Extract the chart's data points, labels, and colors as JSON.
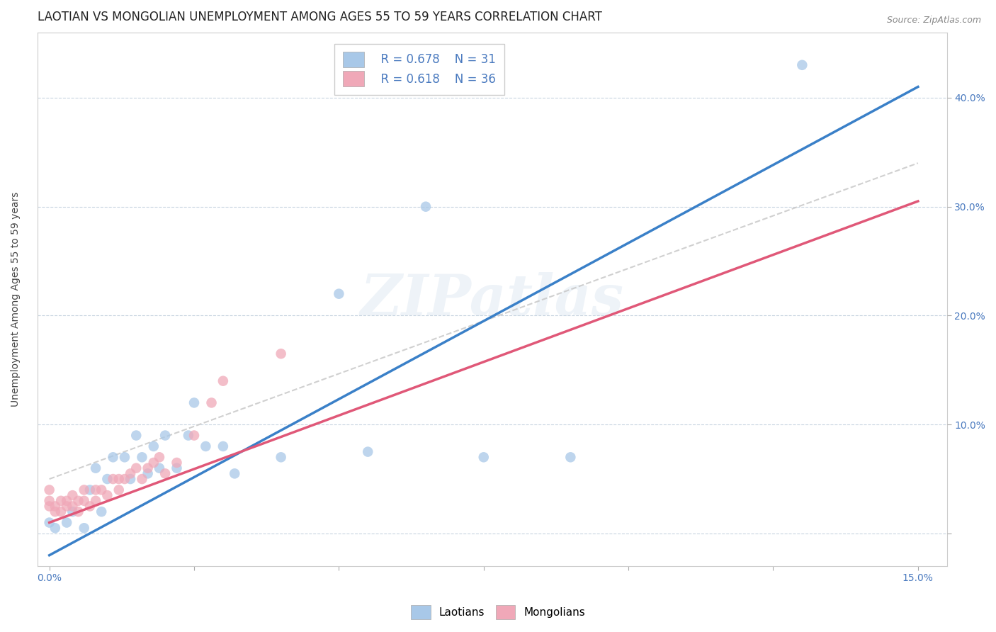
{
  "title": "LAOTIAN VS MONGOLIAN UNEMPLOYMENT AMONG AGES 55 TO 59 YEARS CORRELATION CHART",
  "source": "Source: ZipAtlas.com",
  "ylabel": "Unemployment Among Ages 55 to 59 years",
  "xlim": [
    -0.002,
    0.155
  ],
  "ylim": [
    -0.03,
    0.46
  ],
  "xticks": [
    0.0,
    0.025,
    0.05,
    0.075,
    0.1,
    0.125,
    0.15
  ],
  "xtick_labels": [
    "0.0%",
    "",
    "",
    "",
    "",
    "",
    "15.0%"
  ],
  "yticks": [
    0.0,
    0.1,
    0.2,
    0.3,
    0.4
  ],
  "ytick_labels": [
    "",
    "10.0%",
    "20.0%",
    "30.0%",
    "40.0%"
  ],
  "legend_R1": "R = 0.678",
  "legend_N1": "N = 31",
  "legend_R2": "R = 0.618",
  "legend_N2": "N = 36",
  "laotian_color": "#a8c8e8",
  "mongolian_color": "#f0a8b8",
  "laotian_line_color": "#3a80c8",
  "mongolian_line_color": "#e05878",
  "ref_line_color": "#c8c8c8",
  "watermark": "ZIPatlas",
  "background_color": "#ffffff",
  "grid_color": "#c8d4e0",
  "title_fontsize": 12,
  "axis_label_fontsize": 10,
  "tick_fontsize": 10,
  "legend_fontsize": 12,
  "marker_size": 110,
  "laotian_x": [
    0.0,
    0.001,
    0.003,
    0.004,
    0.006,
    0.007,
    0.008,
    0.009,
    0.01,
    0.011,
    0.013,
    0.014,
    0.015,
    0.016,
    0.017,
    0.018,
    0.019,
    0.02,
    0.022,
    0.024,
    0.025,
    0.027,
    0.03,
    0.032,
    0.04,
    0.05,
    0.055,
    0.065,
    0.075,
    0.09,
    0.13
  ],
  "laotian_y": [
    0.01,
    0.005,
    0.01,
    0.02,
    0.005,
    0.04,
    0.06,
    0.02,
    0.05,
    0.07,
    0.07,
    0.05,
    0.09,
    0.07,
    0.055,
    0.08,
    0.06,
    0.09,
    0.06,
    0.09,
    0.12,
    0.08,
    0.08,
    0.055,
    0.07,
    0.22,
    0.075,
    0.3,
    0.07,
    0.07,
    0.43
  ],
  "mongolian_x": [
    0.0,
    0.0,
    0.0,
    0.001,
    0.001,
    0.002,
    0.002,
    0.003,
    0.003,
    0.004,
    0.004,
    0.005,
    0.005,
    0.006,
    0.006,
    0.007,
    0.008,
    0.008,
    0.009,
    0.01,
    0.011,
    0.012,
    0.012,
    0.013,
    0.014,
    0.015,
    0.016,
    0.017,
    0.018,
    0.019,
    0.02,
    0.022,
    0.025,
    0.028,
    0.03,
    0.04
  ],
  "mongolian_y": [
    0.025,
    0.03,
    0.04,
    0.02,
    0.025,
    0.02,
    0.03,
    0.025,
    0.03,
    0.025,
    0.035,
    0.02,
    0.03,
    0.03,
    0.04,
    0.025,
    0.03,
    0.04,
    0.04,
    0.035,
    0.05,
    0.04,
    0.05,
    0.05,
    0.055,
    0.06,
    0.05,
    0.06,
    0.065,
    0.07,
    0.055,
    0.065,
    0.09,
    0.12,
    0.14,
    0.165
  ],
  "laotian_line": {
    "x0": 0.0,
    "y0": -0.02,
    "x1": 0.15,
    "y1": 0.41
  },
  "mongolian_line": {
    "x0": 0.0,
    "y0": 0.01,
    "x1": 0.15,
    "y1": 0.305
  },
  "ref_line": {
    "x0": 0.0,
    "y0": 0.05,
    "x1": 0.15,
    "y1": 0.34
  }
}
